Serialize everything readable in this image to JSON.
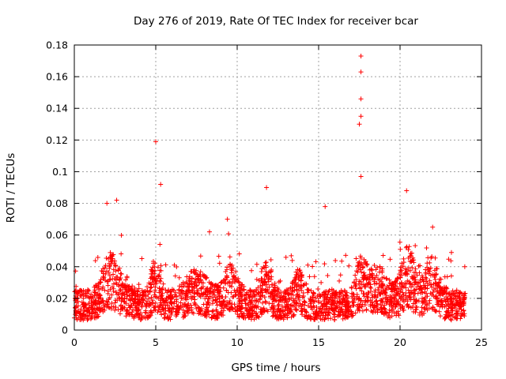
{
  "chart_data": {
    "type": "scatter",
    "title": "Day 276 of 2019, Rate Of TEC Index for receiver bcar",
    "xlabel": "GPS time / hours",
    "ylabel": "ROTI / TECUs",
    "xlim": [
      0,
      25
    ],
    "ylim": [
      0,
      0.18
    ],
    "x_ticks": [
      "0",
      "5",
      "10",
      "15",
      "20",
      "25"
    ],
    "y_ticks": [
      "0",
      "0.02",
      "0.04",
      "0.06",
      "0.08",
      "0.1",
      "0.12",
      "0.14",
      "0.16",
      "0.18"
    ],
    "grid": true,
    "marker": "+",
    "color": "#ff0000",
    "points_summary": {
      "time_range_hours": [
        0,
        24
      ],
      "typical_roti_range": [
        0.005,
        0.045
      ],
      "peaks": [
        {
          "x": 2.0,
          "y": 0.08
        },
        {
          "x": 2.6,
          "y": 0.082
        },
        {
          "x": 5.0,
          "y": 0.119
        },
        {
          "x": 5.3,
          "y": 0.092
        },
        {
          "x": 8.3,
          "y": 0.062
        },
        {
          "x": 9.4,
          "y": 0.07
        },
        {
          "x": 11.8,
          "y": 0.09
        },
        {
          "x": 15.4,
          "y": 0.078
        },
        {
          "x": 17.6,
          "y": 0.173
        },
        {
          "x": 17.6,
          "y": 0.163
        },
        {
          "x": 17.6,
          "y": 0.146
        },
        {
          "x": 17.6,
          "y": 0.135
        },
        {
          "x": 17.5,
          "y": 0.13
        },
        {
          "x": 17.6,
          "y": 0.097
        },
        {
          "x": 20.4,
          "y": 0.088
        },
        {
          "x": 22.0,
          "y": 0.065
        }
      ]
    }
  }
}
